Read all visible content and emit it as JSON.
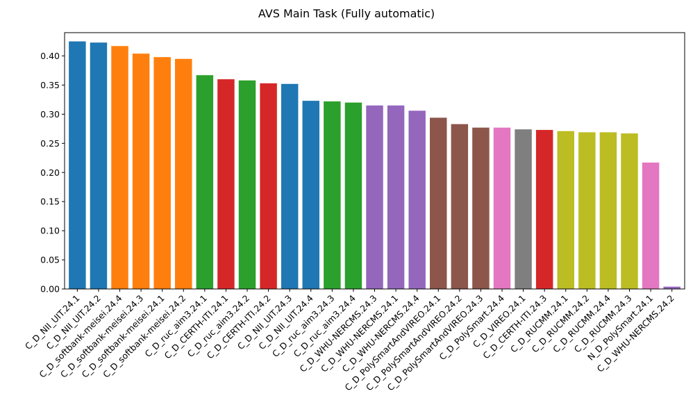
{
  "chart_data": {
    "type": "bar",
    "title": "AVS Main Task (Fully automatic)",
    "xlabel": "",
    "ylabel": "",
    "ylim": [
      0,
      0.44
    ],
    "yticks": [
      0.0,
      0.05,
      0.1,
      0.15,
      0.2,
      0.25,
      0.3,
      0.35,
      0.4
    ],
    "ytick_labels": [
      "0.00",
      "0.05",
      "0.10",
      "0.15",
      "0.20",
      "0.25",
      "0.30",
      "0.35",
      "0.40"
    ],
    "grid": false,
    "categories": [
      "C_D_NII_UIT.24.1",
      "C_D_NII_UIT.24.2",
      "C_D_softbank-meisei.24.4",
      "C_D_softbank-meisei.24.3",
      "C_D_softbank-meisei.24.1",
      "C_D_softbank-meisei.24.2",
      "C_D_ruc_aim3.24.1",
      "C_D_CERTH-ITI.24.1",
      "C_D_ruc_aim3.24.2",
      "C_D_CERTH-ITI.24.2",
      "C_D_NII_UIT.24.3",
      "C_D_NII_UIT.24.4",
      "C_D_ruc_aim3.24.3",
      "C_D_ruc_aim3.24.4",
      "C_D_WHU-NERCMS.24.3",
      "C_D_WHU-NERCMS.24.1",
      "C_D_WHU-NERCMS.24.4",
      "C_D_PolySmartAndVIREO.24.1",
      "C_D_PolySmartAndVIREO.24.2",
      "C_D_PolySmartAndVIREO.24.3",
      "C_D_PolySmart.24.4",
      "C_D_VIREO.24.1",
      "C_D_CERTH-ITI.24.3",
      "C_D_RUCMM.24.1",
      "C_D_RUCMM.24.2",
      "C_D_RUCMM.24.4",
      "C_D_RUCMM.24.3",
      "N_D_PolySmart.24.1",
      "C_D_WHU-NERCMS.24.2"
    ],
    "values": [
      0.425,
      0.423,
      0.417,
      0.404,
      0.398,
      0.395,
      0.367,
      0.36,
      0.358,
      0.353,
      0.352,
      0.323,
      0.322,
      0.32,
      0.315,
      0.315,
      0.306,
      0.294,
      0.283,
      0.277,
      0.277,
      0.274,
      0.273,
      0.271,
      0.269,
      0.269,
      0.267,
      0.217,
      0.004
    ],
    "colors": [
      "#1f77b4",
      "#1f77b4",
      "#ff7f0e",
      "#ff7f0e",
      "#ff7f0e",
      "#ff7f0e",
      "#2ca02c",
      "#d62728",
      "#2ca02c",
      "#d62728",
      "#1f77b4",
      "#1f77b4",
      "#2ca02c",
      "#2ca02c",
      "#9467bd",
      "#9467bd",
      "#9467bd",
      "#8c564b",
      "#8c564b",
      "#8c564b",
      "#e377c2",
      "#7f7f7f",
      "#d62728",
      "#bcbd22",
      "#bcbd22",
      "#bcbd22",
      "#bcbd22",
      "#e377c2",
      "#9467bd"
    ]
  }
}
